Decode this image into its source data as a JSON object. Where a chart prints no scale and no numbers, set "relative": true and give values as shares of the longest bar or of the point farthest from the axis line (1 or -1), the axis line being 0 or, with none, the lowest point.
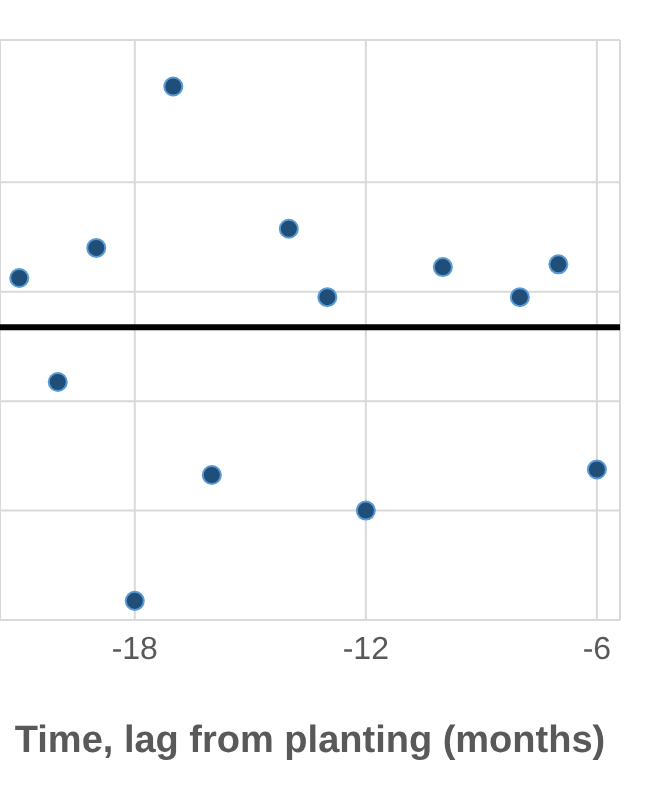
{
  "chart_data": {
    "type": "scatter",
    "xlabel": "Time, lag from planting (months)",
    "relative": true,
    "grid": true,
    "marker": "circle",
    "xlim": [
      -21.5,
      -5.4
    ],
    "xticks": [
      -18,
      -12,
      -6
    ],
    "x": [
      -21,
      -20,
      -19,
      -18,
      -17,
      -16,
      -14,
      -13,
      -12,
      -10,
      -8,
      -7,
      -6
    ],
    "series": [
      {
        "color": "#1f4e79",
        "values": [
          0.18,
          -0.2,
          0.29,
          -1,
          0.88,
          -0.54,
          0.36,
          0.11,
          -0.67,
          0.22,
          0.11,
          0.23,
          -0.52
        ]
      }
    ]
  }
}
